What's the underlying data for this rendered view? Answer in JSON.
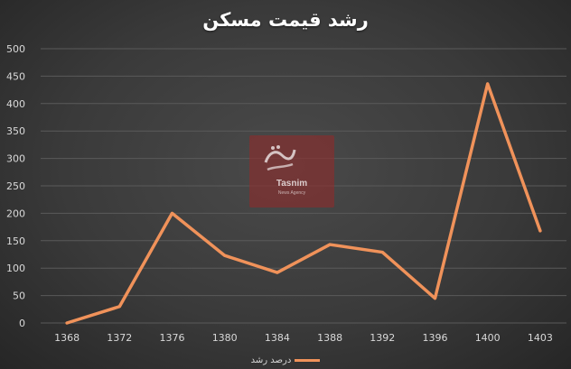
{
  "chart_data": {
    "type": "line",
    "title": "رشد قیمت مسکن",
    "categories": [
      "1368",
      "1372",
      "1376",
      "1380",
      "1384",
      "1388",
      "1392",
      "1396",
      "1400",
      "1403"
    ],
    "series": [
      {
        "name": "درصد رشد",
        "values": [
          0,
          30,
          200,
          123,
          92,
          143,
          129,
          45,
          436,
          168
        ],
        "color": "#f0925a"
      }
    ],
    "ylim": [
      0,
      500
    ],
    "yticks": [
      0,
      50,
      100,
      150,
      200,
      250,
      300,
      350,
      400,
      450,
      500
    ],
    "grid": true,
    "legend": "bottom"
  },
  "watermark": {
    "brand": "Tasnim",
    "subtitle": "News Agency",
    "arabic_mark": "تسنیم"
  },
  "colors": {
    "background": "#3a3a3a",
    "grid": "#5a5a5a",
    "axis_text": "#d9d9d9",
    "line": "#f0925a"
  }
}
